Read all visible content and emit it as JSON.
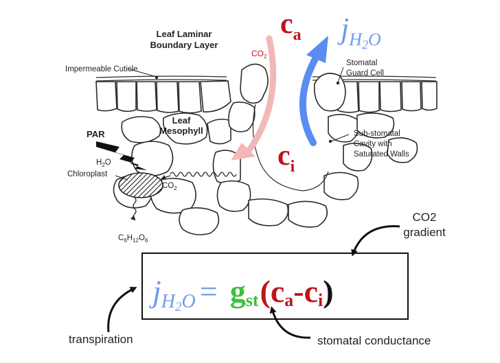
{
  "labels": {
    "boundary_layer_line1": "Leaf Laminar",
    "boundary_layer_line2": "Boundary Layer",
    "cuticle": "Impermeable Cuticle",
    "guard_cell_line1": "Stomatal",
    "guard_cell_line2": "Guard Cell",
    "mesophyll_line1": "Leaf",
    "mesophyll_line2": "Mesophyll",
    "par": "PAR",
    "h2o": "H",
    "h2o_sub": "2",
    "h2o_end": "O",
    "chloroplast": "Chloroplast",
    "co2_small": "CO",
    "co2_small_sub": "2",
    "co2_top": "CO",
    "co2_top_sub": "2",
    "cavity_line1": "Sub-stomatal",
    "cavity_line2": "Cavity with",
    "cavity_line3": "Saturated Walls",
    "glucose_c": "C",
    "glucose_c_sub": "6",
    "glucose_h": "H",
    "glucose_h_sub": "12",
    "glucose_o": "O",
    "glucose_o_sub": "6",
    "ca": "c",
    "ca_sub": "a",
    "ci": "c",
    "ci_sub": "i",
    "j": "j",
    "j_sub": "H",
    "j_sub2": "2",
    "j_sub3": "O"
  },
  "equation": {
    "j": "j",
    "j_sub": "H",
    "j_sub2": "2",
    "j_sub3": "O",
    "equals": "=",
    "g": "g",
    "g_sub": "st",
    "open": "(",
    "ca": "c",
    "ca_sub": "a",
    "minus": "-",
    "ci": "c",
    "ci_sub": "i",
    "close": ")"
  },
  "annotations": {
    "gradient_line1": "CO2",
    "gradient_line2": "gradient",
    "transpiration": "transpiration",
    "conductance": "stomatal conductance"
  },
  "colors": {
    "ca_ci": "#c0141c",
    "j_blue": "#6f9bef",
    "g_green": "#3fbf3f",
    "co2_arrow": "#f2b8b8",
    "h2o_arrow": "#5a8cf2"
  }
}
